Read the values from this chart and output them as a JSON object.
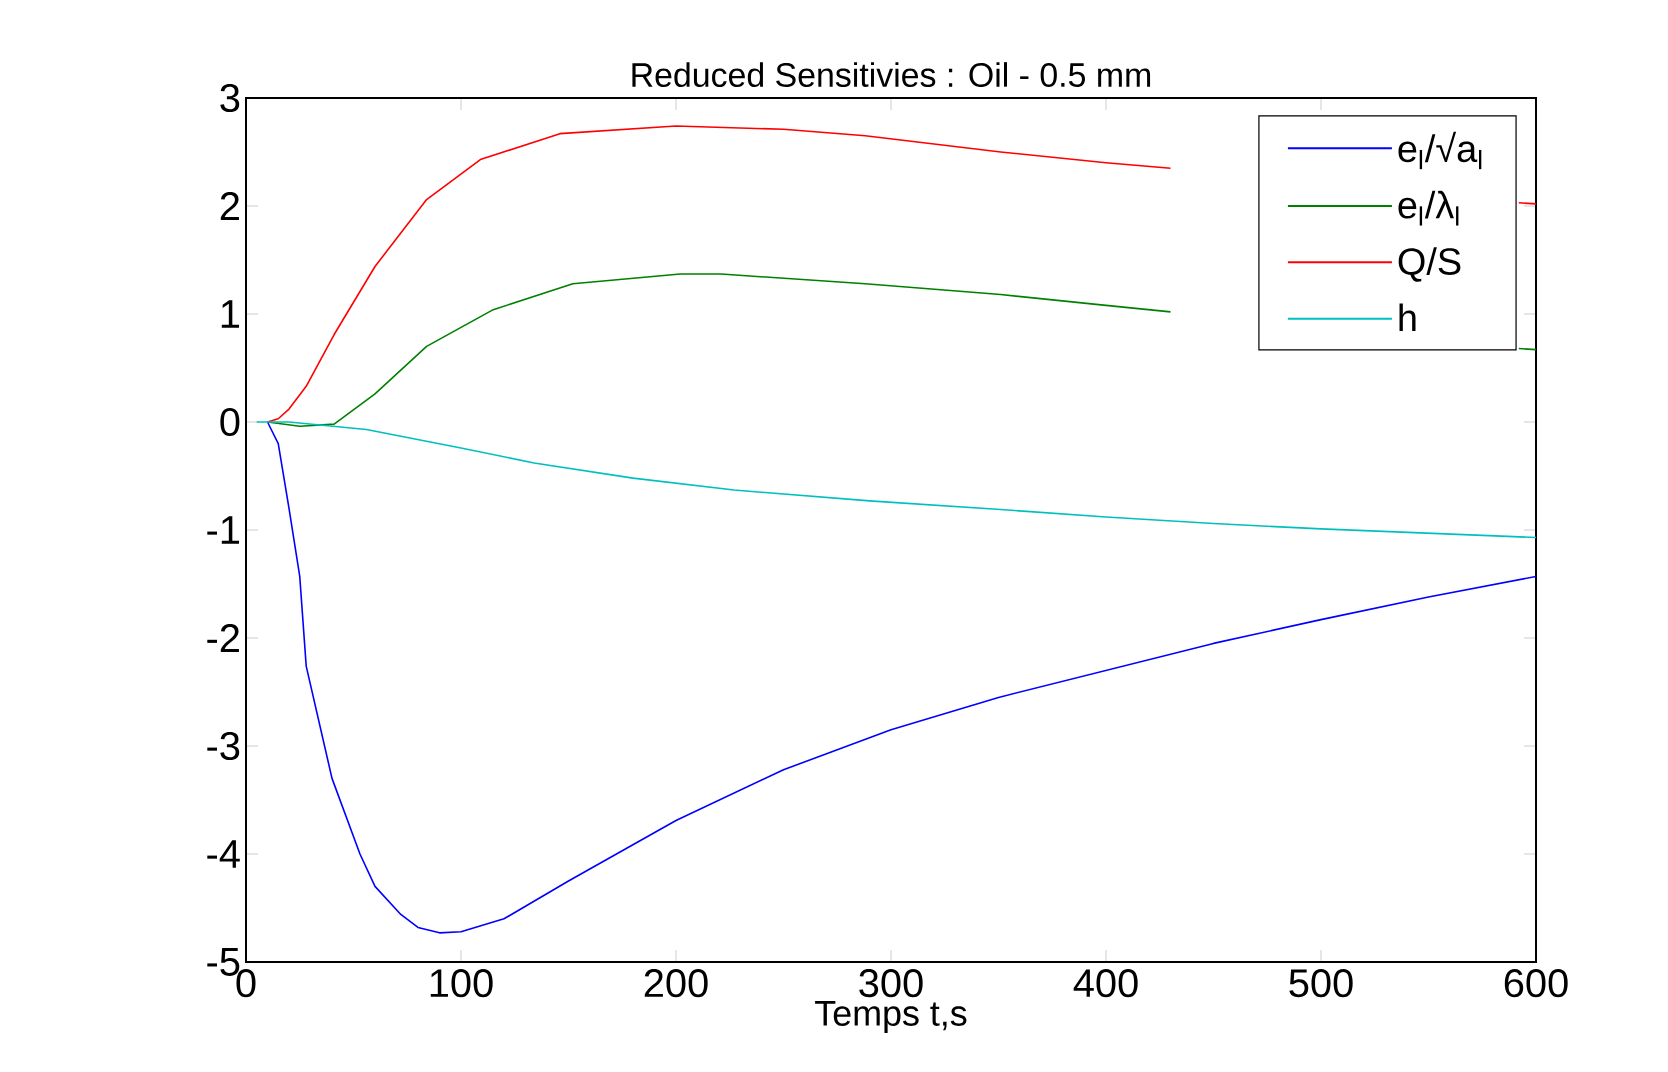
{
  "chart_data": {
    "type": "line",
    "title": "Reduced Sensitivies : Oil - 0.5 mm",
    "xlabel": "Temps t,s",
    "xlim": [
      0,
      600
    ],
    "ylim": [
      -5,
      3
    ],
    "xticks": [
      0,
      100,
      200,
      300,
      400,
      500,
      600
    ],
    "yticks": [
      -5,
      -4,
      -3,
      -2,
      -1,
      0,
      1,
      2,
      3
    ],
    "legend": "top right",
    "series": [
      {
        "name": "e$_{l}$/√a$_{l}$",
        "color": "#0000ff",
        "x": [
          10,
          15,
          20,
          25,
          28,
          40,
          53,
          60,
          72,
          80,
          90,
          100,
          120,
          150,
          200,
          250,
          300,
          350,
          400,
          450,
          500,
          550,
          600
        ],
        "values": [
          0,
          -0.2,
          -0.8,
          -1.43,
          -2.26,
          -3.3,
          -4.0,
          -4.3,
          -4.56,
          -4.68,
          -4.73,
          -4.72,
          -4.6,
          -4.25,
          -3.69,
          -3.22,
          -2.85,
          -2.55,
          -2.3,
          -2.05,
          -1.83,
          -1.62,
          -1.43
        ]
      },
      {
        "name": "e$_{l}$/λ$_{l}$",
        "color": "#008000",
        "x": [
          10,
          25,
          41,
          60,
          84,
          115,
          152,
          202,
          221,
          288,
          351,
          400,
          430,
          470,
          592,
          600
        ],
        "values": [
          0,
          -0.04,
          -0.02,
          0.26,
          0.7,
          1.04,
          1.28,
          1.37,
          1.37,
          1.28,
          1.18,
          1.08,
          1.02,
          null,
          0.68,
          0.67
        ]
      },
      {
        "name": "Q/S",
        "color": "#ff0000",
        "x": [
          10,
          15,
          20,
          28,
          41,
          60,
          84,
          109,
          146,
          200,
          250,
          288,
          351,
          400,
          430,
          470,
          592,
          600
        ],
        "values": [
          0,
          0.03,
          0.12,
          0.33,
          0.81,
          1.44,
          2.06,
          2.43,
          2.67,
          2.74,
          2.71,
          2.65,
          2.5,
          2.4,
          2.35,
          null,
          2.03,
          2.02
        ]
      },
      {
        "name": "h",
        "color": "#00bfbf",
        "x": [
          5,
          20,
          56,
          100,
          134,
          180,
          227,
          290,
          351,
          400,
          450,
          500,
          550,
          600
        ],
        "values": [
          0,
          0,
          -0.07,
          -0.24,
          -0.38,
          -0.52,
          -0.63,
          -0.73,
          -0.81,
          -0.88,
          -0.94,
          -0.99,
          -1.03,
          -1.07
        ]
      }
    ]
  }
}
